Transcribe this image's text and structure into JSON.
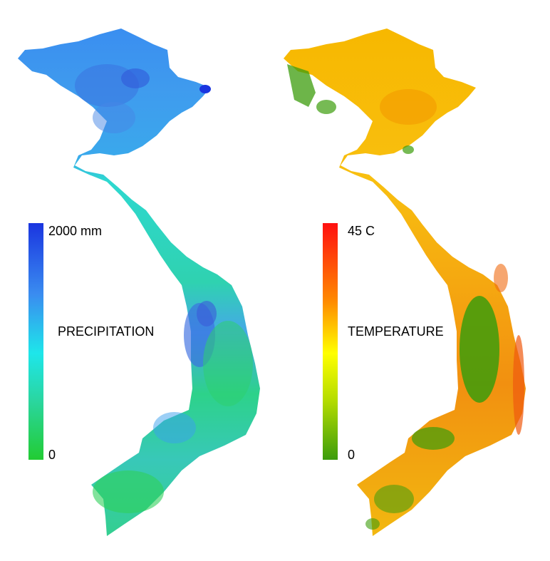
{
  "precipitation": {
    "title": "PRECIPITATION",
    "max_label": "2000 mm",
    "min_label": "0",
    "colors": [
      "#1a35e0",
      "#3a8cf0",
      "#1ee6ea",
      "#2ad6a0",
      "#22cc33"
    ]
  },
  "temperature": {
    "title": "TEMPERATURE",
    "max_label": "45 C",
    "min_label": "0",
    "colors": [
      "#ff1010",
      "#ff8a00",
      "#ffff00",
      "#b4dc00",
      "#3c9c0c"
    ]
  }
}
